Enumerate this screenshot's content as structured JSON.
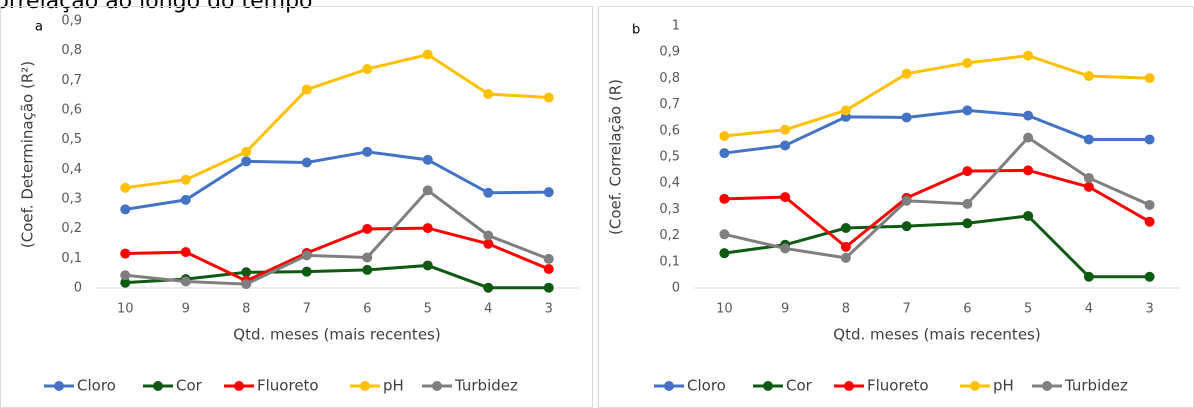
{
  "header": {
    "title": "Correlação ao longo do tempo"
  },
  "chart_data": [
    {
      "type": "line",
      "panel_label": "a",
      "ylabel": "(Coef. Determinação (R²)",
      "xlabel": "Qtd. meses (mais recentes)",
      "categories": [
        "10",
        "9",
        "8",
        "7",
        "6",
        "5",
        "4",
        "3"
      ],
      "ylim": [
        0,
        0.9
      ],
      "yticks": [
        0,
        {
          "value": 0.1,
          "label": "0,1"
        },
        {
          "value": 0.2,
          "label": "0,2"
        },
        {
          "value": 0.3,
          "label": "0,3"
        },
        {
          "value": 0.4,
          "label": "0,4"
        },
        {
          "value": 0.5,
          "label": "0,5"
        },
        {
          "value": 0.6,
          "label": "0,6"
        },
        {
          "value": 0.7,
          "label": "0,7"
        },
        {
          "value": 0.8,
          "label": "0,8"
        },
        {
          "value": 0.9,
          "label": "0,9"
        }
      ],
      "grid": false,
      "legend": "bottom",
      "series": [
        {
          "name": "Cloro",
          "color": "#4472c4",
          "values": [
            0.265,
            0.297,
            0.427,
            0.423,
            0.459,
            0.432,
            0.321,
            0.323
          ]
        },
        {
          "name": "Cor",
          "color": "#0e5a13",
          "values": [
            0.018,
            0.03,
            0.053,
            0.055,
            0.061,
            0.076,
            0.001,
            0.001
          ]
        },
        {
          "name": "Fluoreto",
          "color": "#ff0000",
          "values": [
            0.116,
            0.121,
            0.024,
            0.118,
            0.199,
            0.202,
            0.149,
            0.064
          ]
        },
        {
          "name": "pH",
          "color": "#ffc000",
          "values": [
            0.338,
            0.365,
            0.459,
            0.669,
            0.738,
            0.787,
            0.654,
            0.642
          ]
        },
        {
          "name": "Turbidez",
          "color": "#7f7f7f",
          "values": [
            0.043,
            0.022,
            0.013,
            0.11,
            0.103,
            0.329,
            0.177,
            0.098
          ]
        }
      ]
    },
    {
      "type": "line",
      "panel_label": "b",
      "ylabel": "(Coef. Correlação (R)",
      "xlabel": "Qtd. meses (mais recentes)",
      "categories": [
        "10",
        "9",
        "8",
        "7",
        "6",
        "5",
        "4",
        "3"
      ],
      "ylim": [
        0,
        1
      ],
      "yticks": [
        0,
        {
          "value": 0.1,
          "label": "0,1"
        },
        {
          "value": 0.2,
          "label": "0,2"
        },
        {
          "value": 0.3,
          "label": "0,3"
        },
        {
          "value": 0.4,
          "label": "0,4"
        },
        {
          "value": 0.5,
          "label": "0,5"
        },
        {
          "value": 0.6,
          "label": "0,6"
        },
        {
          "value": 0.7,
          "label": "0,7"
        },
        {
          "value": 0.8,
          "label": "0,8"
        },
        {
          "value": 0.9,
          "label": "0,9"
        },
        1
      ],
      "grid": false,
      "legend": "bottom",
      "series": [
        {
          "name": "Cloro",
          "color": "#4472c4",
          "values": [
            0.515,
            0.544,
            0.653,
            0.651,
            0.678,
            0.658,
            0.567,
            0.567
          ]
        },
        {
          "name": "Cor",
          "color": "#0e5a13",
          "values": [
            0.133,
            0.165,
            0.229,
            0.236,
            0.247,
            0.275,
            0.043,
            0.043
          ]
        },
        {
          "name": "Fluoreto",
          "color": "#ff0000",
          "values": [
            0.34,
            0.347,
            0.157,
            0.344,
            0.446,
            0.449,
            0.386,
            0.253
          ]
        },
        {
          "name": "pH",
          "color": "#ffc000",
          "values": [
            0.58,
            0.604,
            0.678,
            0.818,
            0.859,
            0.887,
            0.809,
            0.801
          ]
        },
        {
          "name": "Turbidez",
          "color": "#7f7f7f",
          "values": [
            0.205,
            0.151,
            0.115,
            0.333,
            0.321,
            0.574,
            0.42,
            0.317
          ]
        }
      ]
    }
  ]
}
